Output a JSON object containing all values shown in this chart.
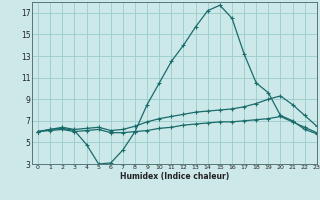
{
  "title": "",
  "xlabel": "Humidex (Indice chaleur)",
  "bg_color": "#cce8e8",
  "grid_color": "#99cccc",
  "line_color": "#1a6b6b",
  "xlim": [
    -0.5,
    23
  ],
  "ylim": [
    3,
    18
  ],
  "xticks": [
    0,
    1,
    2,
    3,
    4,
    5,
    6,
    7,
    8,
    9,
    10,
    11,
    12,
    13,
    14,
    15,
    16,
    17,
    18,
    19,
    20,
    21,
    22,
    23
  ],
  "yticks": [
    3,
    5,
    7,
    9,
    11,
    13,
    15,
    17
  ],
  "curve1_x": [
    0,
    1,
    2,
    3,
    4,
    5,
    6,
    7,
    8,
    9,
    10,
    11,
    12,
    13,
    14,
    15,
    16,
    17,
    18,
    19,
    20,
    21,
    22,
    23
  ],
  "curve1_y": [
    6.0,
    6.2,
    6.3,
    6.1,
    4.8,
    3.0,
    3.1,
    4.3,
    6.0,
    8.5,
    10.5,
    12.5,
    14.0,
    15.7,
    17.2,
    17.7,
    16.5,
    13.2,
    10.5,
    9.6,
    7.5,
    7.0,
    6.2,
    5.8
  ],
  "curve2_x": [
    0,
    1,
    2,
    3,
    4,
    5,
    6,
    7,
    8,
    9,
    10,
    11,
    12,
    13,
    14,
    15,
    16,
    17,
    18,
    19,
    20,
    21,
    22,
    23
  ],
  "curve2_y": [
    6.0,
    6.2,
    6.4,
    6.2,
    6.3,
    6.4,
    6.1,
    6.2,
    6.5,
    6.9,
    7.2,
    7.4,
    7.6,
    7.8,
    7.9,
    8.0,
    8.1,
    8.3,
    8.6,
    9.0,
    9.3,
    8.5,
    7.5,
    6.5
  ],
  "curve3_x": [
    0,
    1,
    2,
    3,
    4,
    5,
    6,
    7,
    8,
    9,
    10,
    11,
    12,
    13,
    14,
    15,
    16,
    17,
    18,
    19,
    20,
    21,
    22,
    23
  ],
  "curve3_y": [
    6.0,
    6.1,
    6.2,
    6.0,
    6.1,
    6.2,
    5.9,
    5.9,
    6.0,
    6.1,
    6.3,
    6.4,
    6.6,
    6.7,
    6.8,
    6.9,
    6.9,
    7.0,
    7.1,
    7.2,
    7.4,
    6.9,
    6.4,
    5.9
  ]
}
